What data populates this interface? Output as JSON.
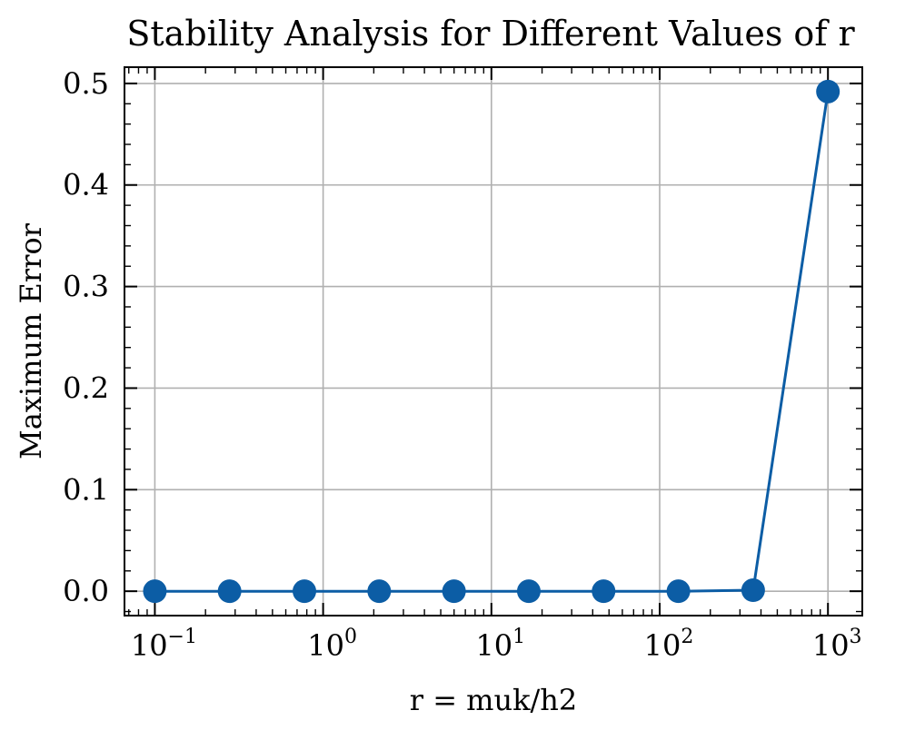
{
  "chart_data": {
    "type": "line",
    "title": "Stability Analysis for Different Values of r",
    "xlabel": "r = muk/h2",
    "ylabel": "Maximum Error",
    "xscale": "log",
    "xlim": [
      0.066,
      1600
    ],
    "ylim": [
      -0.024,
      0.516
    ],
    "grid": true,
    "marker": "circle",
    "color": "#0c5da5",
    "xticks": [
      {
        "base": "10",
        "exp": "−1",
        "value": 0.1
      },
      {
        "base": "10",
        "exp": "0",
        "value": 1
      },
      {
        "base": "10",
        "exp": "1",
        "value": 10
      },
      {
        "base": "10",
        "exp": "2",
        "value": 100
      },
      {
        "base": "10",
        "exp": "3",
        "value": 1000
      }
    ],
    "yticks": [
      {
        "label": "0.0",
        "value": 0.0
      },
      {
        "label": "0.1",
        "value": 0.1
      },
      {
        "label": "0.2",
        "value": 0.2
      },
      {
        "label": "0.3",
        "value": 0.3
      },
      {
        "label": "0.4",
        "value": 0.4
      },
      {
        "label": "0.5",
        "value": 0.5
      }
    ],
    "series": [
      {
        "x": [
          0.1,
          0.278,
          0.774,
          2.154,
          5.995,
          16.68,
          46.42,
          129.2,
          359.4,
          1000
        ],
        "y": [
          0.0,
          0.0,
          0.0,
          0.0,
          0.0,
          0.0,
          0.0,
          0.0,
          0.001,
          0.492
        ]
      }
    ]
  }
}
